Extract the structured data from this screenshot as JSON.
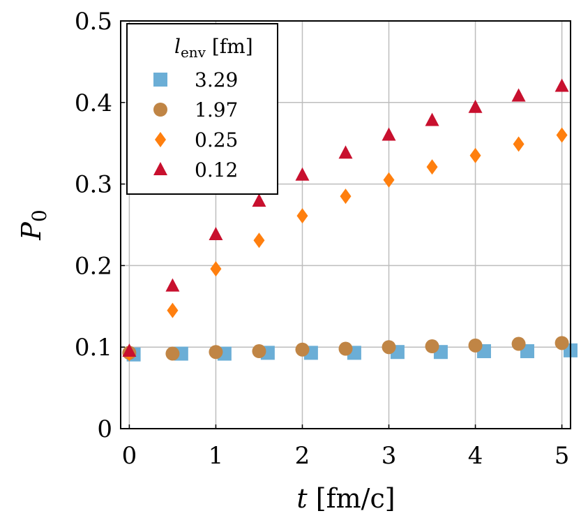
{
  "chart_data": {
    "type": "scatter",
    "xlabel": "t [fm/c]",
    "ylabel": "P0",
    "xlim": [
      -0.1,
      5.1
    ],
    "ylim": [
      0,
      0.5
    ],
    "xticks": [
      "0",
      "1",
      "2",
      "3",
      "4",
      "5"
    ],
    "yticks": [
      "0",
      "0.1",
      "0.2",
      "0.3",
      "0.4",
      "0.5"
    ],
    "grid": true,
    "legend": {
      "placement": "top-left",
      "title": "l_env [fm]"
    },
    "series": [
      {
        "name": "3.29",
        "marker": "square",
        "color": "#6baed6",
        "x": [
          0.05,
          0.6,
          1.1,
          1.6,
          2.1,
          2.6,
          3.1,
          3.6,
          4.1,
          4.6,
          5.1
        ],
        "y": [
          0.091,
          0.092,
          0.092,
          0.093,
          0.093,
          0.093,
          0.094,
          0.094,
          0.095,
          0.095,
          0.096
        ]
      },
      {
        "name": "1.97",
        "marker": "circle",
        "color": "#c08545",
        "x": [
          0,
          0.5,
          1,
          1.5,
          2,
          2.5,
          3,
          3.5,
          4,
          4.5,
          5
        ],
        "y": [
          0.093,
          0.092,
          0.094,
          0.095,
          0.097,
          0.098,
          0.1,
          0.101,
          0.102,
          0.104,
          0.105
        ]
      },
      {
        "name": "0.25",
        "marker": "diamond",
        "color": "#ff7f0e",
        "x": [
          0,
          0.5,
          1,
          1.5,
          2,
          2.5,
          3,
          3.5,
          4,
          4.5,
          5
        ],
        "y": [
          0.092,
          0.145,
          0.196,
          0.231,
          0.261,
          0.285,
          0.305,
          0.321,
          0.335,
          0.349,
          0.36
        ]
      },
      {
        "name": "0.12",
        "marker": "triangle",
        "color": "#c8102e",
        "x": [
          0,
          0.5,
          1,
          1.5,
          2,
          2.5,
          3,
          3.5,
          4,
          4.5,
          5
        ],
        "y": [
          0.095,
          0.175,
          0.238,
          0.279,
          0.311,
          0.338,
          0.36,
          0.378,
          0.394,
          0.408,
          0.42
        ]
      }
    ]
  }
}
